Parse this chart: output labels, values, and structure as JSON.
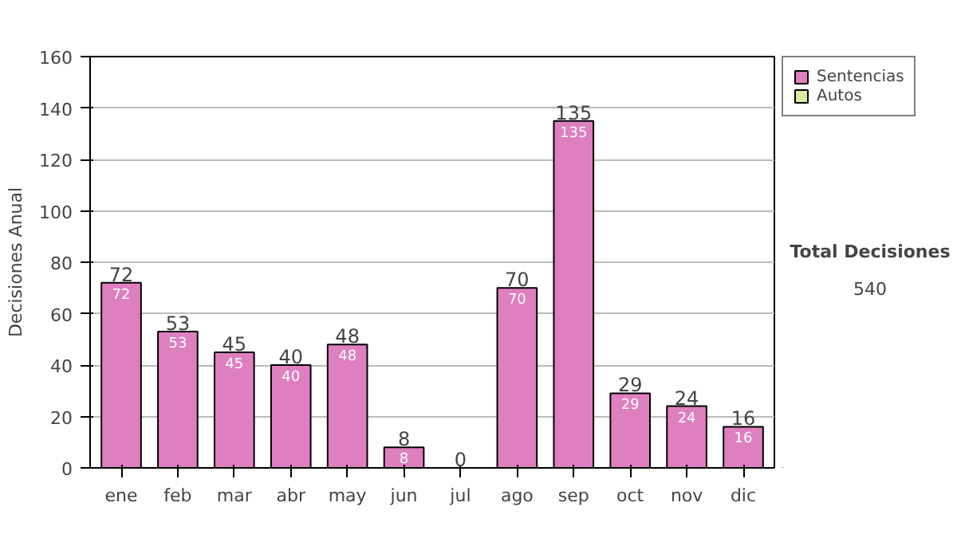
{
  "chart_data": {
    "type": "bar",
    "ylabel": "Decisiones Anual",
    "categories": [
      "ene",
      "feb",
      "mar",
      "abr",
      "may",
      "jun",
      "jul",
      "ago",
      "sep",
      "oct",
      "nov",
      "dic"
    ],
    "series": [
      {
        "name": "Sentencias",
        "color": "#de7fc0",
        "values": [
          72,
          53,
          45,
          40,
          48,
          8,
          0,
          70,
          135,
          29,
          24,
          16
        ],
        "value_labels": [
          "72",
          "53",
          "45",
          "40",
          "48",
          "8",
          null,
          "70",
          "135",
          "29",
          "24",
          "16"
        ]
      },
      {
        "name": "Autos",
        "color": "#d8eca0",
        "values": [
          0,
          0,
          0,
          0,
          0,
          0,
          0,
          0,
          0,
          0,
          0,
          0
        ]
      }
    ],
    "totals": [
      "72",
      "53",
      "45",
      "40",
      "48",
      "8",
      "0",
      "70",
      "135",
      "29",
      "24",
      "16"
    ],
    "ylim": [
      0,
      160
    ],
    "yticks": [
      0,
      20,
      40,
      60,
      80,
      100,
      120,
      140,
      160
    ],
    "grid": "y",
    "legend": "right",
    "annotations": [
      "Total Decisiones",
      "540"
    ]
  }
}
